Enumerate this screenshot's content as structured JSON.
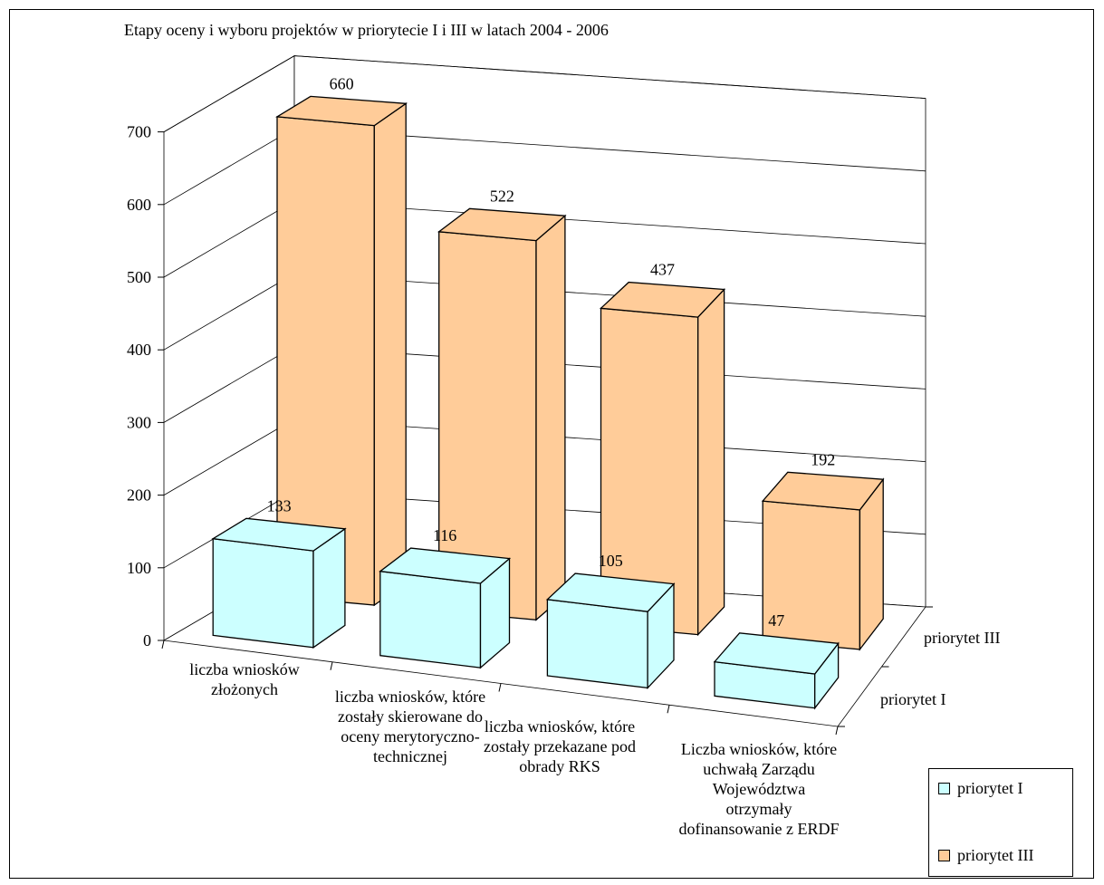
{
  "chart_data": {
    "type": "bar",
    "title": "Etapy oceny i wyboru projektów w priorytecie I i III w latach 2004 - 2006",
    "categories": [
      [
        "liczba wniosków",
        "złożonych"
      ],
      [
        "liczba wniosków, które",
        "zostały skierowane do",
        "oceny merytoryczno-",
        "technicznej"
      ],
      [
        "liczba wniosków, które",
        "zostały przekazane pod",
        "obrady RKS"
      ],
      [
        "Liczba wniosków, które",
        "uchwałą Zarządu",
        "Województwa",
        "otrzymały",
        "dofinansowanie z ERDF"
      ]
    ],
    "series": [
      {
        "name": "priorytet I",
        "values": [
          133,
          116,
          105,
          47
        ],
        "color": "#ccffff"
      },
      {
        "name": "priorytet III",
        "values": [
          660,
          522,
          437,
          192
        ],
        "color": "#ffcc99"
      }
    ],
    "depth_labels": [
      "priorytet I",
      "priorytet III"
    ],
    "ylim": [
      0,
      700
    ],
    "yticks": [
      0,
      100,
      200,
      300,
      400,
      500,
      600,
      700
    ],
    "grid": true,
    "legend_position": "bottom-right"
  }
}
